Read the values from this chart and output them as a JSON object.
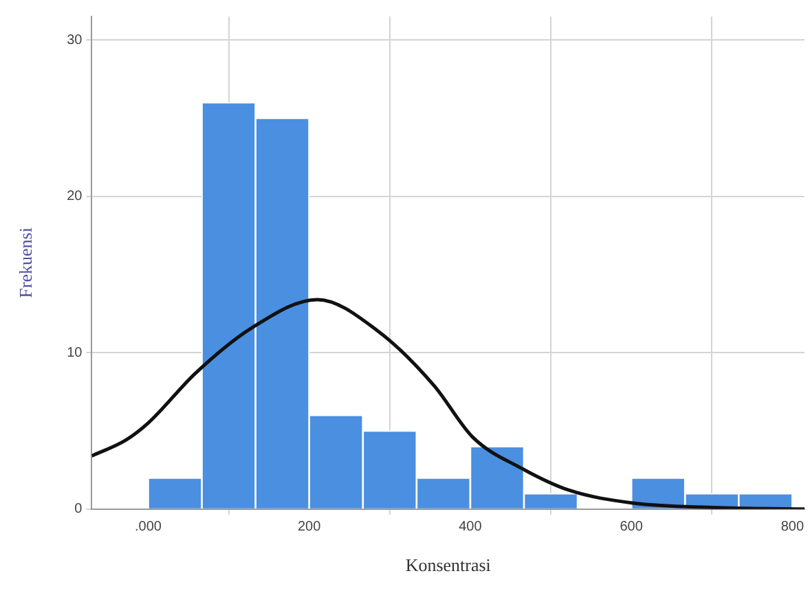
{
  "chart_data": {
    "type": "histogram",
    "xlabel": "Konsentrasi",
    "ylabel": "Frekuensi",
    "bins": [
      0,
      66.7,
      133.3,
      200,
      266.7,
      333.3,
      400,
      466.7,
      533.3,
      600,
      666.7,
      733.3,
      800
    ],
    "values": [
      2,
      26,
      25,
      6,
      5,
      2,
      4,
      1,
      0,
      2,
      1,
      1
    ],
    "color": "#4a8fe0",
    "series": [
      {
        "type": "line",
        "color": "#111111",
        "x": [
          -70,
          -28,
          0,
          59,
          129,
          210,
          285,
          355,
          403,
          464,
          523,
          600,
          700,
          815
        ],
        "values": [
          3.4,
          4.4,
          5.5,
          8.7,
          11.6,
          13.4,
          11.4,
          7.9,
          4.6,
          2.6,
          1.2,
          0.4,
          0.1,
          0
        ]
      }
    ],
    "xlim": [
      -70,
      815
    ],
    "xticks": [
      {
        "value": 0,
        "label": ".000"
      },
      200,
      400,
      600,
      800
    ],
    "ylim": [
      0,
      31.5
    ],
    "yticks": [
      0,
      10,
      20,
      30
    ],
    "grid": true,
    "legend": false,
    "marker": "none",
    "line_style": "solid"
  }
}
